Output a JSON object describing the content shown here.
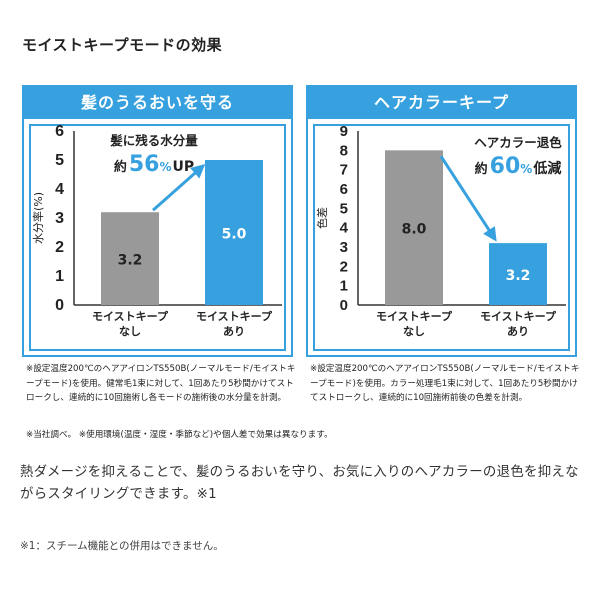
{
  "page_title": "モイストキープモードの効果",
  "chart_data": [
    {
      "type": "bar",
      "title": "髪のうるおいを守る",
      "ylabel": "水分率(%)",
      "ylim": [
        0,
        6
      ],
      "yticks": [
        0,
        1,
        2,
        3,
        4,
        5,
        6
      ],
      "grid": false,
      "categories": [
        [
          "モイストキープ",
          "なし"
        ],
        [
          "モイストキープ",
          "あり"
        ]
      ],
      "values": [
        3.2,
        5.0
      ],
      "value_labels": [
        "3.2",
        "5.0"
      ],
      "colors": [
        "#999999",
        "#36a1de"
      ],
      "arrow_direction": "up",
      "annotation": {
        "line1": "髪に残る水分量",
        "pre": "約",
        "num": "56",
        "pct": "%",
        "post": "UP"
      }
    },
    {
      "type": "bar",
      "title": "ヘアカラーキープ",
      "ylabel": "色差",
      "ylim": [
        0,
        9
      ],
      "yticks": [
        0,
        1,
        2,
        3,
        4,
        5,
        6,
        7,
        8,
        9
      ],
      "grid": false,
      "categories": [
        [
          "モイストキープ",
          "なし"
        ],
        [
          "モイストキープ",
          "あり"
        ]
      ],
      "values": [
        8.0,
        3.2
      ],
      "value_labels": [
        "8.0",
        "3.2"
      ],
      "colors": [
        "#999999",
        "#36a1de"
      ],
      "arrow_direction": "down",
      "annotation": {
        "line1": "ヘアカラー退色",
        "pre": "約",
        "num": "60",
        "pct": "%",
        "post": "低減"
      }
    }
  ],
  "notes": {
    "left": "※設定温度200℃のヘアアイロンTS550B(ノーマルモード/モイストキープモード)を使用。健常毛1束に対して、1回あたり5秒間かけてストロークし、連続的に10回施術し各モードの施術後の水分量を計測。",
    "right": "※設定温度200℃のヘアアイロンTS550B(ノーマルモード/モイストキープモード)を使用。カラー処理毛1束に対して、1回あたり5秒間かけてストロークし、連続的に10回施術前後の色差を計測。",
    "common": "※当社調べ。 ※使用環境(温度・湿度・季節など)や個人差で効果は異なります。"
  },
  "description": "熱ダメージを抑えることで、髪のうるおいを守り、お気に入りのヘアカラーの退色を抑えながらスタイリングできます。※1",
  "footnote": "※1：スチーム機能との併用はできません。"
}
